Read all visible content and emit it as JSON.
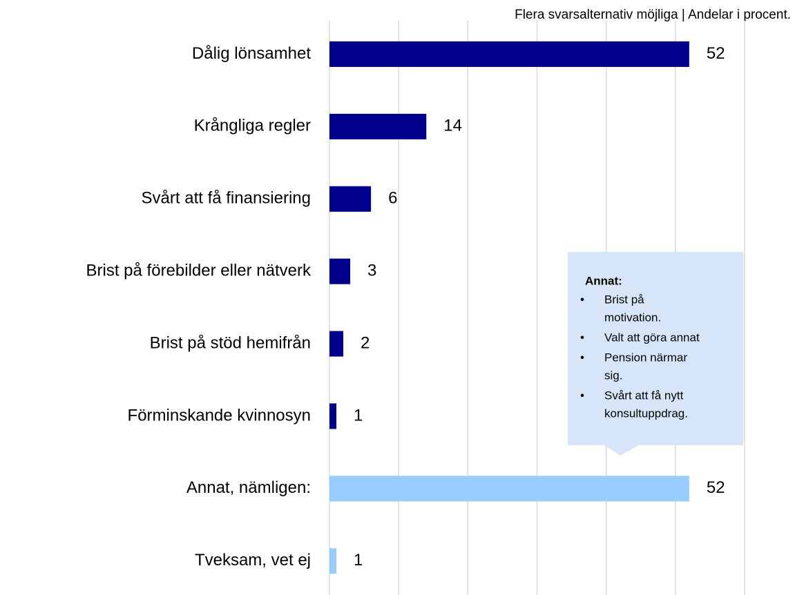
{
  "chart_data": {
    "type": "hbar",
    "subtitle": "Flera svarsalternativ möjliga | Andelar i procent.",
    "categories": [
      "Dålig lönsamhet",
      "Krångliga regler",
      "Svårt att få finansiering",
      "Brist på förebilder eller nätverk",
      "Brist på stöd hemifrån",
      "Förminskande kvinnosyn",
      "Annat, nämligen:",
      "Tveksam, vet ej"
    ],
    "values": [
      52,
      14,
      6,
      3,
      2,
      1,
      52,
      1
    ],
    "colors": [
      "#00008b",
      "#00008b",
      "#00008b",
      "#00008b",
      "#00008b",
      "#00008b",
      "#99ccff",
      "#99ccff"
    ],
    "xlim": [
      0,
      60
    ],
    "xticks": [
      0,
      10,
      20,
      30,
      40,
      50,
      60
    ],
    "grid": true,
    "annotation": {
      "title": "Annat:",
      "items": [
        [
          "Brist på",
          "motivation."
        ],
        [
          "Valt att göra annat"
        ],
        [
          "Pension närmar",
          "sig."
        ],
        [
          "Svårt att få nytt",
          "konsultuppdrag."
        ]
      ]
    }
  }
}
